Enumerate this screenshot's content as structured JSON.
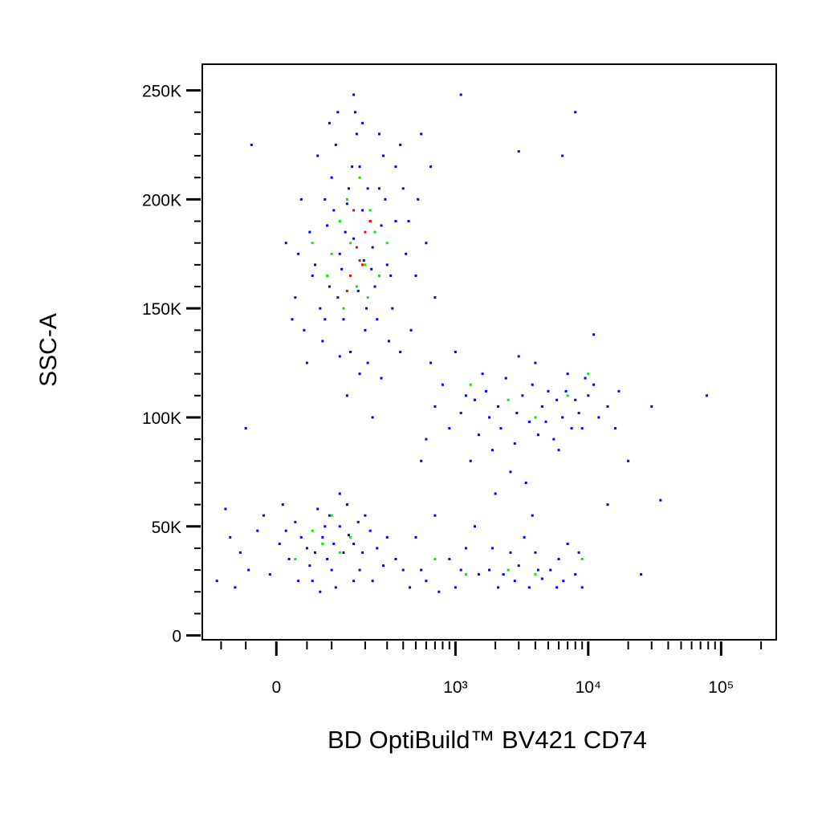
{
  "chart_data": {
    "type": "scatter",
    "x_label": "BD OptiBuild™ BV421 CD74",
    "y_label": "SSC-A",
    "xscale": "biexponential",
    "xlim": [
      -150,
      260000
    ],
    "ylim": [
      -2000,
      262000
    ],
    "xticks": [
      0,
      {
        "value": 1000,
        "label": "10³"
      },
      {
        "value": 10000,
        "label": "10⁴"
      },
      {
        "value": 100000,
        "label": "10⁵"
      }
    ],
    "xminorticks": [
      -100,
      -50,
      50,
      100,
      200,
      300,
      400,
      500,
      600,
      700,
      800,
      900,
      2000,
      3000,
      4000,
      5000,
      6000,
      7000,
      8000,
      9000,
      20000,
      30000,
      40000,
      50000,
      60000,
      70000,
      80000,
      90000,
      200000
    ],
    "yticks": [
      0,
      {
        "value": 50000,
        "label": "50K"
      },
      {
        "value": 100000,
        "label": "100K"
      },
      {
        "value": 150000,
        "label": "150K"
      },
      {
        "value": 200000,
        "label": "200K"
      },
      {
        "value": 250000,
        "label": "250K"
      }
    ],
    "yminorticks": [
      10000,
      20000,
      30000,
      40000,
      60000,
      70000,
      80000,
      90000,
      110000,
      120000,
      130000,
      140000,
      160000,
      170000,
      180000,
      190000,
      210000,
      220000,
      230000,
      240000
    ],
    "series": [
      {
        "color": "#0000ff",
        "x": [
          160,
          120,
          220,
          95,
          260,
          180,
          75,
          300,
          140,
          200,
          55,
          350,
          110,
          240,
          170,
          85,
          420,
          130,
          280,
          60,
          190,
          150,
          330,
          100,
          230,
          45,
          270,
          125,
          400,
          210,
          35,
          500,
          165,
          90,
          310,
          145,
          70,
          380,
          250,
          115,
          190,
          600,
          30,
          225,
          135,
          460,
          80,
          290,
          175,
          105,
          350,
          65,
          520,
          195,
          155,
          40,
          260,
          120,
          440,
          205,
          25,
          700,
          180,
          95,
          320,
          140,
          230,
          -40,
          15,
          650,
          380,
          160,
          270,
          50,
          115,
          550,
          210,
          85,
          1200,
          2100,
          3600,
          5000,
          8000,
          900,
          1600,
          2800,
          6400,
          11000,
          700,
          1300,
          4000,
          9000,
          2400,
          600,
          3200,
          7000,
          14000,
          1000,
          1800,
          5500,
          2600,
          12000,
          800,
          4500,
          1500,
          3000,
          6000,
          10000,
          2000,
          9500,
          1100,
          7500,
          17000,
          550,
          3800,
          2200,
          4800,
          1400,
          8500,
          650,
          5800,
          2900,
          16000,
          3400,
          1700,
          6800,
          1900,
          4200,
          80,
          50,
          120,
          20,
          160,
          -30,
          100,
          200,
          60,
          -60,
          140,
          30,
          250,
          90,
          -10,
          180,
          70,
          110,
          -80,
          40,
          220,
          130,
          10,
          280,
          75,
          -45,
          160,
          95,
          -90,
          230,
          55,
          145,
          5,
          190,
          35,
          -20,
          120,
          300,
          85,
          -110,
          65,
          175,
          15,
          -70,
          105,
          400,
          600,
          900,
          1500,
          2100,
          3000,
          4500,
          6000,
          8000,
          500,
          750,
          1200,
          1800,
          2600,
          3600,
          5200,
          7000,
          350,
          1000,
          1400,
          2300,
          3300,
          4200,
          5800,
          8500,
          450,
          700,
          1100,
          1900,
          2800,
          4000,
          6500,
          9000,
          550,
          3800,
          30000,
          78000,
          20000,
          35000,
          25000,
          14000,
          11000,
          8000,
          6400,
          -50,
          1100,
          3000
        ],
        "y": [
          182000,
          175000,
          190000,
          160000,
          205000,
          215000,
          150000,
          170000,
          198000,
          140000,
          185000,
          190000,
          225000,
          160000,
          230000,
          200000,
          175000,
          145000,
          220000,
          165000,
          235000,
          130000,
          150000,
          210000,
          178000,
          140000,
          188000,
          168000,
          205000,
          125000,
          175000,
          165000,
          240000,
          188000,
          135000,
          205000,
          220000,
          225000,
          145000,
          155000,
          195000,
          180000,
          155000,
          168000,
          185000,
          140000,
          135000,
          200000,
          158000,
          195000,
          215000,
          170000,
          200000,
          172000,
          215000,
          200000,
          230000,
          128000,
          190000,
          150000,
          145000,
          155000,
          120000,
          235000,
          165000,
          110000,
          100000,
          225000,
          180000,
          215000,
          130000,
          248000,
          118000,
          125000,
          240000,
          230000,
          205000,
          145000,
          110000,
          105000,
          98000,
          112000,
          108000,
          95000,
          120000,
          88000,
          100000,
          115000,
          105000,
          80000,
          125000,
          95000,
          118000,
          90000,
          110000,
          120000,
          105000,
          130000,
          100000,
          90000,
          75000,
          100000,
          115000,
          105000,
          92000,
          128000,
          85000,
          110000,
          65000,
          118000,
          102000,
          95000,
          112000,
          80000,
          115000,
          95000,
          98000,
          108000,
          102000,
          125000,
          108000,
          102000,
          95000,
          70000,
          112000,
          112000,
          85000,
          92000,
          45000,
          40000,
          50000,
          35000,
          42000,
          48000,
          30000,
          55000,
          25000,
          38000,
          60000,
          52000,
          40000,
          35000,
          28000,
          30000,
          58000,
          22000,
          45000,
          45000,
          48000,
          38000,
          60000,
          32000,
          20000,
          30000,
          25000,
          55000,
          58000,
          25000,
          32000,
          46000,
          42000,
          38000,
          25000,
          55000,
          65000,
          45000,
          50000,
          25000,
          38000,
          52000,
          48000,
          22000,
          42000,
          30000,
          25000,
          35000,
          28000,
          22000,
          32000,
          26000,
          35000,
          28000,
          45000,
          20000,
          40000,
          30000,
          38000,
          22000,
          30000,
          42000,
          35000,
          22000,
          50000,
          28000,
          45000,
          30000,
          22000,
          38000,
          22000,
          55000,
          30000,
          40000,
          25000,
          38000,
          25000,
          22000,
          30000,
          55000,
          105000,
          110000,
          80000,
          62000,
          28000,
          60000,
          138000,
          240000,
          220000,
          95000,
          248000,
          222000
        ]
      },
      {
        "color": "#00ee00",
        "x": [
          150,
          200,
          120,
          240,
          170,
          100,
          260,
          140,
          210,
          180,
          90,
          300,
          130,
          220,
          60,
          1300,
          4000,
          7000,
          2500,
          10000,
          80,
          60,
          120,
          30,
          150,
          100,
          1200,
          2500,
          700,
          4000,
          9000
        ],
        "y": [
          180000,
          170000,
          190000,
          185000,
          160000,
          175000,
          165000,
          200000,
          155000,
          210000,
          165000,
          180000,
          150000,
          195000,
          180000,
          115000,
          100000,
          110000,
          108000,
          120000,
          42000,
          48000,
          38000,
          35000,
          45000,
          55000,
          28000,
          30000,
          35000,
          28000,
          35000
        ]
      },
      {
        "color": "#ff0000",
        "x": [
          170,
          200,
          150,
          180,
          220,
          140,
          160,
          190
        ],
        "y": [
          178000,
          185000,
          165000,
          172000,
          190000,
          158000,
          195000,
          170000
        ]
      }
    ]
  }
}
